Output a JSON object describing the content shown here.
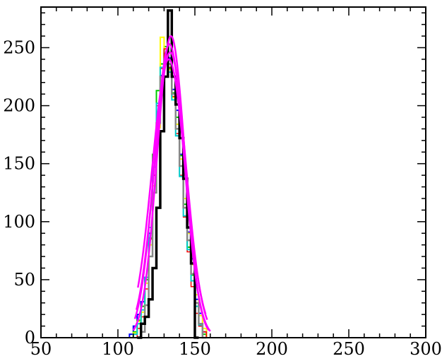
{
  "chart_data": {
    "type": "histogram",
    "title": "",
    "xlabel": "",
    "ylabel": "",
    "xlim": [
      50,
      300
    ],
    "ylim": [
      0,
      285
    ],
    "x_ticks": [
      50,
      100,
      150,
      200,
      250,
      300
    ],
    "y_ticks": [
      0,
      50,
      100,
      150,
      200,
      250
    ],
    "x_tick_labels": [
      "50",
      "100",
      "150",
      "200",
      "250",
      "300"
    ],
    "y_tick_labels": [
      "0",
      "50",
      "100",
      "150",
      "200",
      "250"
    ],
    "grid": false,
    "legend": "none",
    "bin_width": 2.5,
    "histograms": [
      {
        "color": "#000000",
        "width": 3.5,
        "bins": [
          [
            112.5,
            0
          ],
          [
            115,
            12
          ],
          [
            117.5,
            18
          ],
          [
            120,
            33
          ],
          [
            122.5,
            60
          ],
          [
            125,
            112
          ],
          [
            127.5,
            178
          ],
          [
            130,
            225
          ],
          [
            132.5,
            282
          ],
          [
            135,
            225
          ],
          [
            137.5,
            201
          ],
          [
            140,
            172
          ],
          [
            142.5,
            137
          ],
          [
            145,
            95
          ],
          [
            147.5,
            64
          ],
          [
            150,
            0
          ]
        ]
      },
      {
        "color": "#0000ff",
        "width": 2,
        "bins": [
          [
            107.5,
            3
          ],
          [
            110,
            10
          ],
          [
            112.5,
            20
          ],
          [
            115,
            31
          ],
          [
            117.5,
            52
          ],
          [
            120,
            90
          ],
          [
            122.5,
            140
          ],
          [
            125,
            183
          ],
          [
            127.5,
            226
          ],
          [
            130,
            245
          ],
          [
            132.5,
            241
          ],
          [
            135,
            214
          ],
          [
            137.5,
            196
          ],
          [
            140,
            158
          ],
          [
            142.5,
            120
          ],
          [
            145,
            91
          ],
          [
            147.5,
            68
          ],
          [
            150,
            33
          ],
          [
            152.5,
            21
          ],
          [
            155,
            5
          ],
          [
            157.5,
            0
          ]
        ]
      },
      {
        "color": "#00cc00",
        "width": 2,
        "bins": [
          [
            110,
            5
          ],
          [
            112.5,
            15
          ],
          [
            115,
            27
          ],
          [
            117.5,
            50
          ],
          [
            120,
            86
          ],
          [
            122.5,
            158
          ],
          [
            125,
            213
          ],
          [
            127.5,
            236
          ],
          [
            130,
            251
          ],
          [
            132.5,
            232
          ],
          [
            135,
            211
          ],
          [
            137.5,
            190
          ],
          [
            140,
            157
          ],
          [
            142.5,
            115
          ],
          [
            145,
            78
          ],
          [
            147.5,
            54
          ],
          [
            150,
            30
          ],
          [
            152.5,
            12
          ],
          [
            155,
            3
          ],
          [
            157.5,
            0
          ]
        ]
      },
      {
        "color": "#ffff00",
        "width": 2,
        "bins": [
          [
            110,
            4
          ],
          [
            112.5,
            14
          ],
          [
            115,
            22
          ],
          [
            117.5,
            47
          ],
          [
            120,
            80
          ],
          [
            122.5,
            131
          ],
          [
            125,
            181
          ],
          [
            127.5,
            259
          ],
          [
            130,
            249
          ],
          [
            132.5,
            231
          ],
          [
            135,
            207
          ],
          [
            137.5,
            184
          ],
          [
            140,
            154
          ],
          [
            142.5,
            120
          ],
          [
            145,
            90
          ],
          [
            147.5,
            63
          ],
          [
            150,
            37
          ],
          [
            152.5,
            19
          ],
          [
            155,
            8
          ],
          [
            157.5,
            0
          ]
        ]
      },
      {
        "color": "#ff0000",
        "width": 1.5,
        "bins": [
          [
            112.5,
            8
          ],
          [
            115,
            18
          ],
          [
            117.5,
            42
          ],
          [
            120,
            85
          ],
          [
            122.5,
            140
          ],
          [
            125,
            200
          ],
          [
            127.5,
            232
          ],
          [
            130,
            249
          ],
          [
            132.5,
            233
          ],
          [
            135,
            208
          ],
          [
            137.5,
            176
          ],
          [
            140,
            140
          ],
          [
            142.5,
            104
          ],
          [
            145,
            74
          ],
          [
            147.5,
            44
          ],
          [
            150,
            21
          ],
          [
            152.5,
            10
          ],
          [
            155,
            5
          ],
          [
            157.5,
            0
          ]
        ]
      },
      {
        "color": "#00cccc",
        "width": 2,
        "bins": [
          [
            110,
            3
          ],
          [
            112.5,
            12
          ],
          [
            115,
            24
          ],
          [
            117.5,
            52
          ],
          [
            120,
            95
          ],
          [
            122.5,
            147
          ],
          [
            125,
            202
          ],
          [
            127.5,
            233
          ],
          [
            130,
            238
          ],
          [
            132.5,
            229
          ],
          [
            135,
            205
          ],
          [
            137.5,
            174
          ],
          [
            140,
            139
          ],
          [
            142.5,
            105
          ],
          [
            145,
            76
          ],
          [
            147.5,
            49
          ],
          [
            150,
            27
          ],
          [
            152.5,
            11
          ],
          [
            155,
            0
          ]
        ]
      },
      {
        "color": "#888888",
        "width": 2.5,
        "bins": [
          [
            115,
            5
          ],
          [
            117.5,
            28
          ],
          [
            120,
            70
          ],
          [
            122.5,
            125
          ],
          [
            125,
            185
          ],
          [
            127.5,
            225
          ],
          [
            130,
            240
          ],
          [
            132.5,
            236
          ],
          [
            135,
            210
          ],
          [
            137.5,
            180
          ],
          [
            140,
            148
          ],
          [
            142.5,
            112
          ],
          [
            145,
            84
          ],
          [
            147.5,
            55
          ],
          [
            150,
            30
          ],
          [
            152.5,
            12
          ],
          [
            155,
            0
          ]
        ]
      }
    ],
    "fits": [
      {
        "color": "#ff00ff",
        "amplitude": 260,
        "center": 134.5,
        "sigma": 9.0,
        "x_range": [
          110,
          159
        ]
      },
      {
        "color": "#ff00ff",
        "amplitude": 253,
        "center": 133.5,
        "sigma": 9.6,
        "x_range": [
          111,
          160
        ]
      },
      {
        "color": "#ff00ff",
        "amplitude": 246,
        "center": 134.0,
        "sigma": 10.2,
        "x_range": [
          112,
          158
        ]
      },
      {
        "color": "#ff00ff",
        "amplitude": 240,
        "center": 133.0,
        "sigma": 10.8,
        "x_range": [
          113,
          157
        ]
      }
    ]
  }
}
